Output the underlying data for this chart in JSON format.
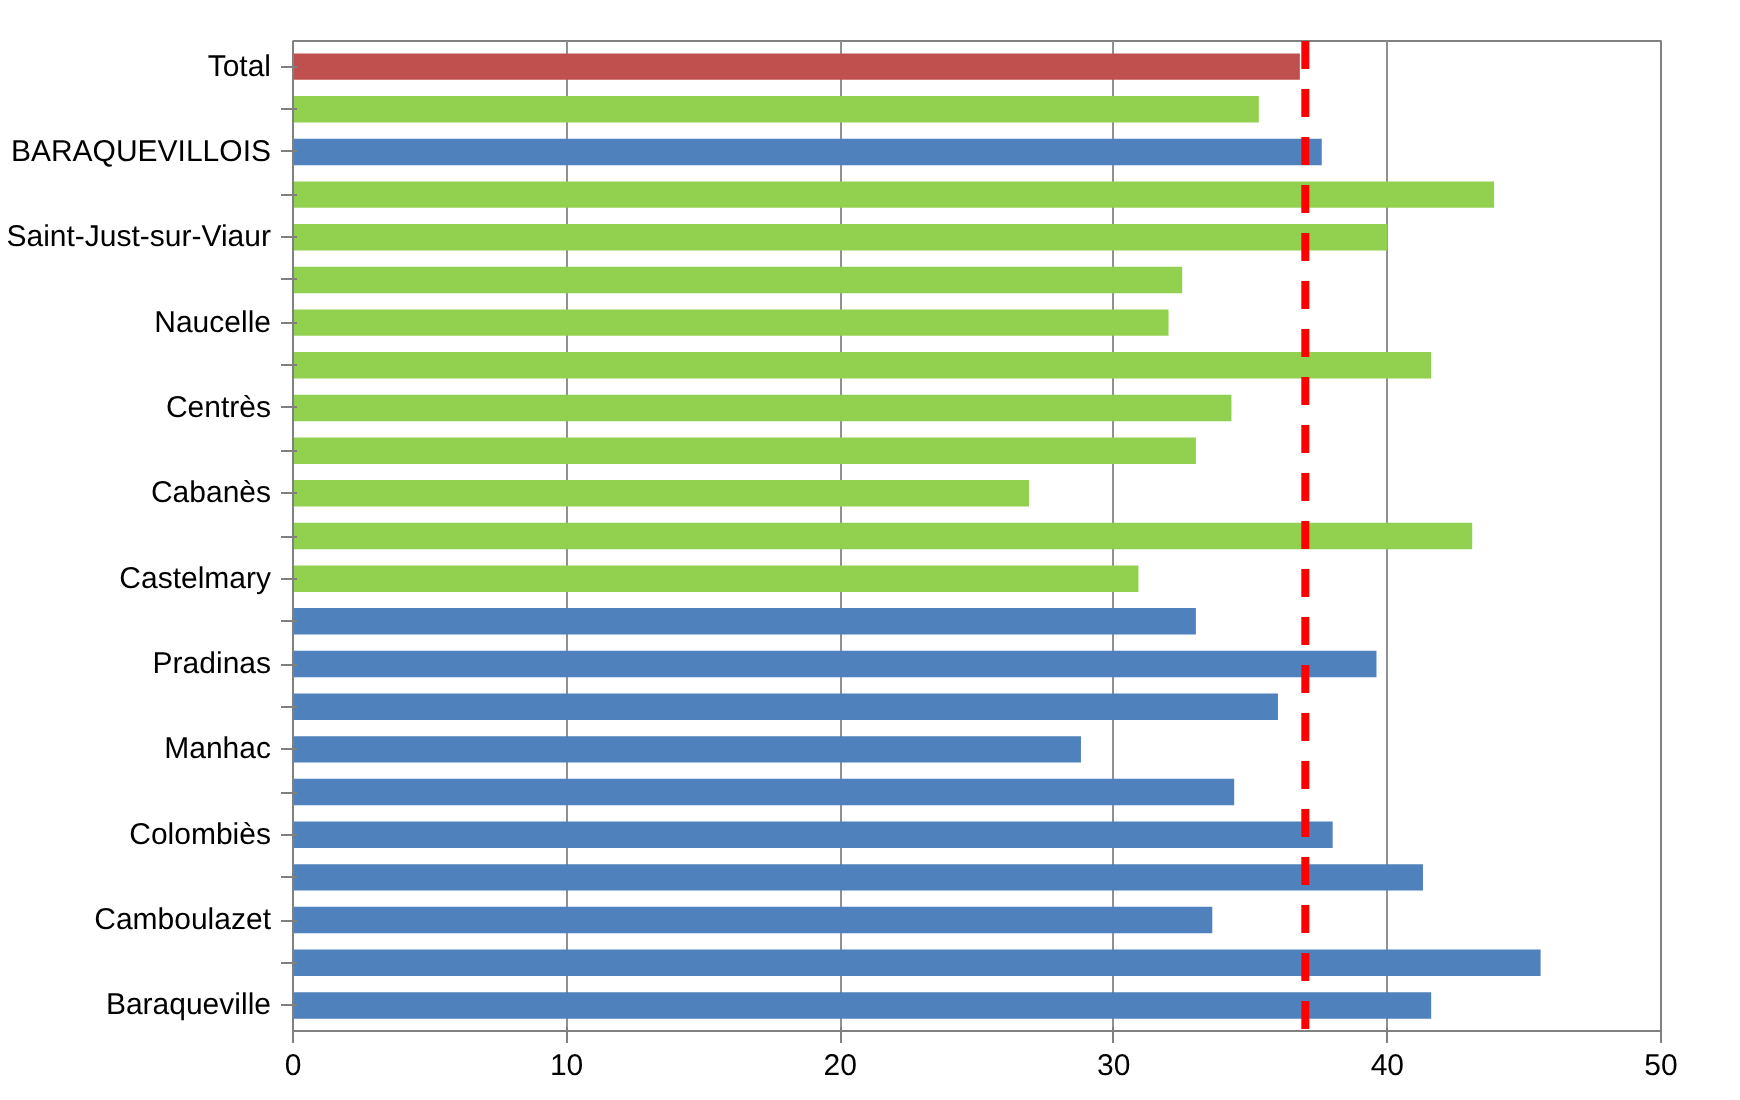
{
  "chart_data": {
    "type": "bar",
    "orientation": "horizontal",
    "categories": [
      "Total",
      null,
      "BARAQUEVILLOIS",
      null,
      "Saint-Just-sur-Viaur",
      null,
      "Naucelle",
      null,
      "Centrès",
      null,
      "Cabanès",
      null,
      "Castelmary",
      null,
      "Pradinas",
      null,
      "Manhac",
      null,
      "Colombiès",
      null,
      "Camboulazet",
      null,
      "Baraqueville"
    ],
    "values": [
      36.8,
      35.3,
      37.6,
      43.9,
      40.0,
      32.5,
      32.0,
      41.6,
      34.3,
      33.0,
      26.9,
      43.1,
      30.9,
      33.0,
      39.6,
      36.0,
      28.8,
      34.4,
      38.0,
      41.3,
      33.6,
      45.6,
      41.6
    ],
    "colors": [
      "#c0504d",
      "#92d050",
      "#4f81bd",
      "#92d050",
      "#92d050",
      "#92d050",
      "#92d050",
      "#92d050",
      "#92d050",
      "#92d050",
      "#92d050",
      "#92d050",
      "#92d050",
      "#4f81bd",
      "#4f81bd",
      "#4f81bd",
      "#4f81bd",
      "#4f81bd",
      "#4f81bd",
      "#4f81bd",
      "#4f81bd",
      "#4f81bd",
      "#4f81bd"
    ],
    "xlim": [
      0,
      50
    ],
    "xticks": [
      0,
      10,
      20,
      30,
      40,
      50
    ],
    "grid": "x",
    "ref_lines": [
      {
        "axis": "x",
        "value": 37.0,
        "color": "#ff0000",
        "line_style": "dashed"
      }
    ]
  }
}
